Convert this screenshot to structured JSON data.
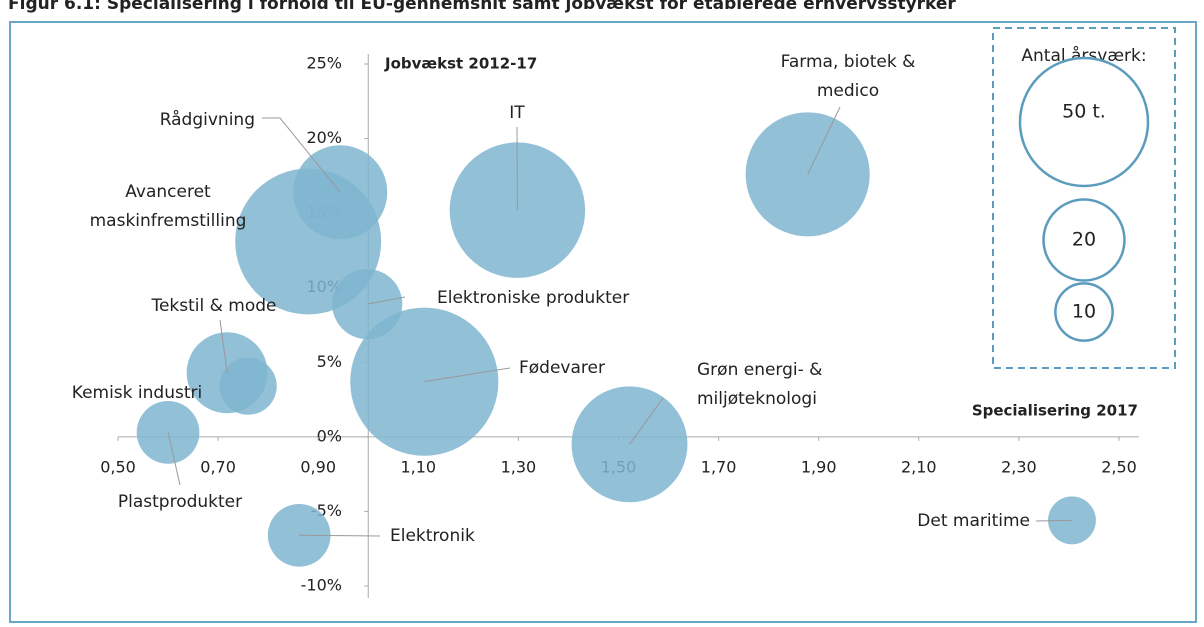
{
  "chart_data": {
    "type": "bubble",
    "title": "Figur 6.1: Specialisering i forhold til EU-gennemsnit samt jobvækst for etablerede erhvervsstyrker",
    "x_label": "Specialisering 2017",
    "y_label": "Jobvækst 2012-17",
    "color": "#7fb5d0",
    "xlim": [
      0.5,
      2.5
    ],
    "ylim": [
      -10,
      25
    ],
    "xticks": [
      {
        "value": 0.5,
        "label": "0,50"
      },
      {
        "value": 0.7,
        "label": "0,70"
      },
      {
        "value": 0.9,
        "label": "0,90"
      },
      {
        "value": 1.1,
        "label": "1,10"
      },
      {
        "value": 1.3,
        "label": "1,30"
      },
      {
        "value": 1.5,
        "label": "1,50"
      },
      {
        "value": 1.7,
        "label": "1,70"
      },
      {
        "value": 1.9,
        "label": "1,90"
      },
      {
        "value": 2.1,
        "label": "2,10"
      },
      {
        "value": 2.3,
        "label": "2,30"
      },
      {
        "value": 2.5,
        "label": "2,50"
      }
    ],
    "yticks": [
      {
        "value": -10,
        "label": "-10%"
      },
      {
        "value": -5,
        "label": "-5%"
      },
      {
        "value": 0,
        "label": "0%"
      },
      {
        "value": 5,
        "label": "5%"
      },
      {
        "value": 10,
        "label": "10%"
      },
      {
        "value": 15,
        "label": "15%"
      },
      {
        "value": 20,
        "label": "20%"
      },
      {
        "value": 25,
        "label": "25%"
      }
    ],
    "points": [
      {
        "name": "Rådgivning",
        "x": 0.944,
        "y": 16.4,
        "size": 27
      },
      {
        "name": "Avanceret\nmaskinfremstilling",
        "x": 0.88,
        "y": 13.1,
        "size": 65
      },
      {
        "name": "IT",
        "x": 1.298,
        "y": 15.2,
        "size": 56
      },
      {
        "name": "Farma, biotek &\nmedico",
        "x": 1.878,
        "y": 17.6,
        "size": 47
      },
      {
        "name": "Elektroniske produkter",
        "x": 0.998,
        "y": 8.9,
        "size": 15
      },
      {
        "name": "Fødevarer",
        "x": 1.112,
        "y": 3.7,
        "size": 67
      },
      {
        "name": "Tekstil & mode",
        "x": 0.718,
        "y": 4.3,
        "size": 20
      },
      {
        "name": "Kemisk industri",
        "x": 0.76,
        "y": 3.4,
        "size": 10
      },
      {
        "name": "Plastprodukter",
        "x": 0.6,
        "y": 0.3,
        "size": 12
      },
      {
        "name": "Grøn energi- &\nmiljøteknologi",
        "x": 1.522,
        "y": -0.5,
        "size": 41
      },
      {
        "name": "Elektronik",
        "x": 0.862,
        "y": -6.6,
        "size": 12
      },
      {
        "name": "Det maritime",
        "x": 2.406,
        "y": -5.6,
        "size": 7
      }
    ],
    "legend": {
      "title": "Antal årsværk:",
      "sizes": [
        {
          "value": 50,
          "label": "50 t."
        },
        20,
        10
      ]
    }
  }
}
